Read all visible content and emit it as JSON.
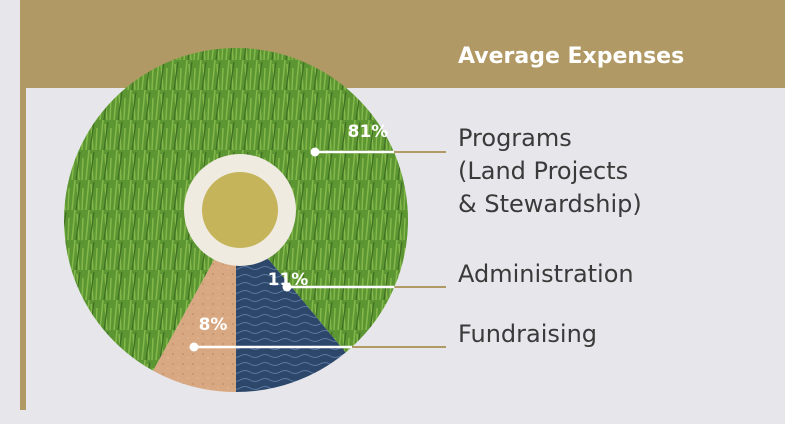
{
  "title": "Average Expenses",
  "chart_data": {
    "type": "pie",
    "categories": [
      "Programs\n(Land Projects\n& Stewardship)",
      "Administration",
      "Fundraising"
    ],
    "values": [
      81,
      11,
      8
    ],
    "value_labels": [
      "81%",
      "11%",
      "8%"
    ],
    "colors": [
      "#5c9632",
      "#2c476a",
      "#d8a882"
    ]
  }
}
